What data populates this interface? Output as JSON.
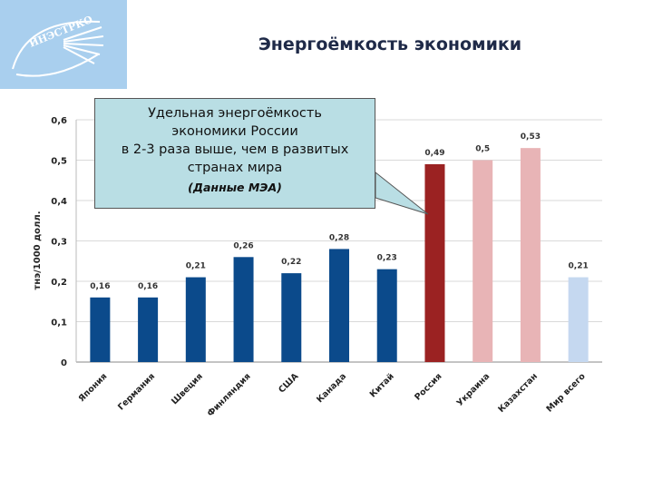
{
  "logo": {
    "text": "ИНЭСТРКО",
    "icon": "sun-arc-logo-icon"
  },
  "title": "Энергоёмкость экономики",
  "callout": {
    "lines": [
      "Удельная энергоёмкость",
      "экономики России",
      "в 2-3 раза выше, чем в развитых",
      "странах мира"
    ],
    "source": "(Данные МЭА)"
  },
  "chart_data": {
    "type": "bar",
    "ylabel": "тнэ/1000 долл.",
    "ylim": [
      0,
      0.6
    ],
    "yticks": [
      "0",
      "0,1",
      "0,2",
      "0,3",
      "0,4",
      "0,5",
      "0,6"
    ],
    "grid": true,
    "categories": [
      "Япония",
      "Германия",
      "Швеция",
      "Финляндия",
      "США",
      "Канада",
      "Китай",
      "Россия",
      "Украина",
      "Казахстан",
      "Мир всего"
    ],
    "values": [
      0.16,
      0.16,
      0.21,
      0.26,
      0.22,
      0.28,
      0.23,
      0.49,
      0.5,
      0.53,
      0.21
    ],
    "labels": [
      "0,16",
      "0,16",
      "0,21",
      "0,26",
      "0,22",
      "0,28",
      "0,23",
      "0,49",
      "0,5",
      "0,53",
      "0,21"
    ],
    "colors": [
      "#0b4a8b",
      "#0b4a8b",
      "#0b4a8b",
      "#0b4a8b",
      "#0b4a8b",
      "#0b4a8b",
      "#0b4a8b",
      "#9b2222",
      "#e8b4b6",
      "#e8b4b6",
      "#c5d8f0"
    ]
  }
}
